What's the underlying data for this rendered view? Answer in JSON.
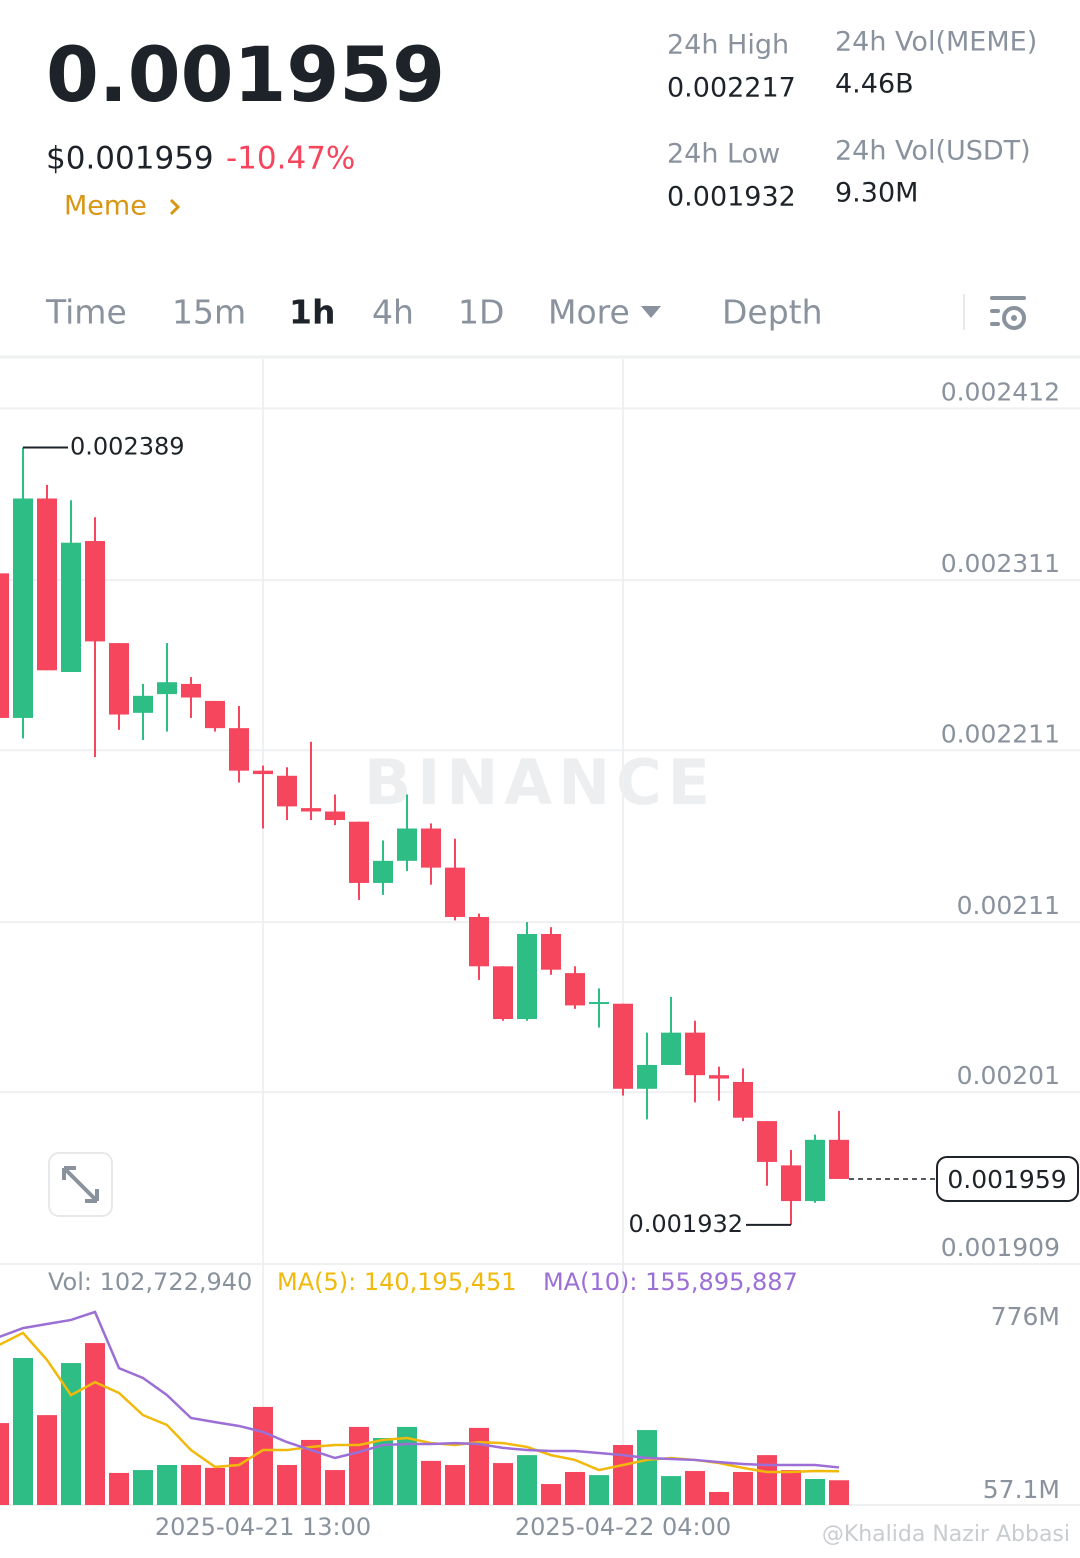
{
  "header": {
    "price": "0.001959",
    "usd_price": "$0.001959",
    "change": "-10.47%",
    "tag": "Meme",
    "stats": [
      {
        "label": "24h High",
        "value": "0.002217"
      },
      {
        "label": "24h Vol(MEME)",
        "value": "4.46B"
      },
      {
        "label": "24h Low",
        "value": "0.001932"
      },
      {
        "label": "24h Vol(USDT)",
        "value": "9.30M"
      }
    ]
  },
  "tabs": [
    "Time",
    "15m",
    "1h",
    "4h",
    "1D",
    "More",
    "Depth"
  ],
  "active_tab": 2,
  "watermark": "BINANCE",
  "credit": "@Khalida Nazir Abbasi",
  "chart_data": [
    {
      "type": "candlestick",
      "categories": [
        null,
        null,
        null,
        null,
        null,
        null,
        null,
        null,
        null,
        null,
        null,
        "2025-04-21 13:00",
        null,
        null,
        null,
        null,
        null,
        null,
        null,
        null,
        null,
        null,
        null,
        null,
        null,
        null,
        "2025-04-22 04:00",
        null,
        null,
        null,
        null,
        null,
        null,
        null,
        null,
        null
      ],
      "open": [
        0.002315,
        0.00223,
        0.002359,
        0.002257,
        0.002334,
        0.002274,
        0.002233,
        0.002244,
        0.00225,
        0.00224,
        0.002224,
        0.002199,
        0.002196,
        0.002177,
        0.002175,
        0.002169,
        0.002133,
        0.002146,
        0.002165,
        0.002142,
        0.002113,
        0.002084,
        0.002053,
        0.002103,
        0.00208,
        0.002062,
        0.002062,
        0.002012,
        0.002026,
        0.002045,
        0.00202,
        0.002016,
        0.001993,
        0.001967,
        0.001946,
        0.001982
      ],
      "high": [
        0.002323,
        0.002389,
        0.002367,
        0.002358,
        0.002348,
        0.002274,
        0.00225,
        0.002274,
        0.002254,
        0.00224,
        0.002237,
        0.002202,
        0.002201,
        0.002216,
        0.002185,
        0.002169,
        0.002158,
        0.002185,
        0.002168,
        0.002159,
        0.002115,
        0.002084,
        0.00211,
        0.002107,
        0.002084,
        0.002071,
        0.002062,
        0.002045,
        0.002066,
        0.002052,
        0.002025,
        0.002024,
        0.001993,
        0.001976,
        0.001985,
        0.001999
      ],
      "low": [
        0.00222,
        0.002218,
        0.002258,
        0.002257,
        0.002207,
        0.002223,
        0.002217,
        0.002222,
        0.00223,
        0.002222,
        0.002192,
        0.002165,
        0.00217,
        0.00217,
        0.002167,
        0.002123,
        0.002126,
        0.00214,
        0.002132,
        0.002111,
        0.002076,
        0.002052,
        0.002052,
        0.002079,
        0.002059,
        0.002048,
        0.002008,
        0.001994,
        0.002026,
        0.002004,
        0.002005,
        0.001993,
        0.001955,
        0.001932,
        0.001945,
        0.001959
      ],
      "close": [
        0.00223,
        0.002359,
        0.002258,
        0.002333,
        0.002275,
        0.002232,
        0.002243,
        0.002251,
        0.002242,
        0.002224,
        0.002199,
        0.002197,
        0.002178,
        0.002175,
        0.00217,
        0.002133,
        0.002146,
        0.002165,
        0.002142,
        0.002113,
        0.002084,
        0.002053,
        0.002103,
        0.002082,
        0.002061,
        0.002063,
        0.002012,
        0.002026,
        0.002045,
        0.00202,
        0.002018,
        0.001995,
        0.001969,
        0.001946,
        0.001982,
        0.001959
      ],
      "up_color": "#2ebd85",
      "down_color": "#f6465d",
      "ylim": [
        0.001909,
        0.002441
      ],
      "yticks": [
        0.002412,
        0.002311,
        0.002211,
        0.00211,
        0.00201,
        0.001909
      ],
      "grid": true
    },
    {
      "type": "bar",
      "series": [
        {
          "name": "Vol: 102,722,940",
          "color": "#707a8a",
          "values": [
            340000000,
            610000000,
            373000000,
            589000000,
            672000000,
            133000000,
            145000000,
            166000000,
            166000000,
            154000000,
            199000000,
            407000000,
            166000000,
            270000000,
            145000000,
            324000000,
            278000000,
            324000000,
            183000000,
            166000000,
            320000000,
            174000000,
            207000000,
            87000000,
            137000000,
            124000000,
            249000000,
            311000000,
            120000000,
            141000000,
            54000000,
            137000000,
            207000000,
            145000000,
            108000000,
            102722940
          ]
        },
        {
          "name": "MA(5): 140,195,451",
          "color": "#f0b90b",
          "values": [
            664000000,
            714000000,
            602000000,
            456000000,
            510000000,
            465000000,
            373000000,
            332000000,
            228000000,
            158000000,
            166000000,
            228000000,
            228000000,
            241000000,
            249000000,
            249000000,
            270000000,
            278000000,
            257000000,
            249000000,
            261000000,
            257000000,
            241000000,
            207000000,
            187000000,
            145000000,
            166000000,
            187000000,
            195000000,
            187000000,
            174000000,
            154000000,
            137000000,
            137000000,
            141000000,
            140195451
          ]
        },
        {
          "name": "MA(10): 155,895,887",
          "color": "#9b6fd6",
          "values": [
            697000000,
            734000000,
            751000000,
            768000000,
            801000000,
            568000000,
            527000000,
            456000000,
            361000000,
            344000000,
            328000000,
            303000000,
            261000000,
            228000000,
            195000000,
            220000000,
            249000000,
            253000000,
            253000000,
            257000000,
            253000000,
            237000000,
            228000000,
            224000000,
            224000000,
            216000000,
            207000000,
            195000000,
            191000000,
            187000000,
            178000000,
            170000000,
            166000000,
            166000000,
            166000000,
            155895887
          ]
        }
      ],
      "ylim": [
        0,
        776000000
      ],
      "yticks": [
        {
          "value": 57100000,
          "label": "57.1M"
        },
        {
          "value": 776000000,
          "label": "776M"
        }
      ]
    }
  ]
}
